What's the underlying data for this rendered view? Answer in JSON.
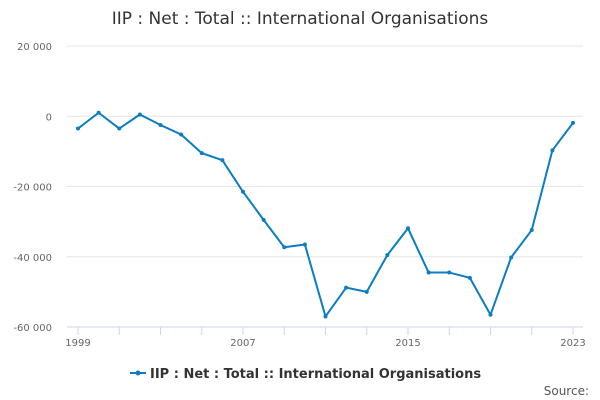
{
  "chart_data": {
    "type": "line",
    "title": "IIP : Net : Total :: International Organisations",
    "xlabel": "",
    "ylabel": "",
    "x": [
      1999,
      2000,
      2001,
      2002,
      2003,
      2004,
      2005,
      2006,
      2007,
      2008,
      2009,
      2010,
      2011,
      2012,
      2013,
      2014,
      2015,
      2016,
      2017,
      2018,
      2019,
      2020,
      2021,
      2022,
      2023
    ],
    "series": [
      {
        "name": "IIP : Net : Total :: International Organisations",
        "color": "#0b7dc0",
        "values": [
          -3500,
          1000,
          -3500,
          500,
          -2500,
          -5200,
          -10500,
          -12500,
          -21500,
          -29500,
          -37300,
          -36500,
          -57000,
          -48800,
          -50000,
          -39500,
          -31900,
          -44500,
          -44500,
          -46000,
          -56500,
          -40200,
          -32400,
          -9700,
          -1900
        ]
      }
    ],
    "xticks": [
      "1999",
      "2007",
      "2015",
      "2023"
    ],
    "yticks": [
      {
        "value": 20000,
        "label": "20 000"
      },
      {
        "value": 0,
        "label": "0"
      },
      {
        "value": -20000,
        "label": "-20 000"
      },
      {
        "value": -40000,
        "label": "-40 000"
      },
      {
        "value": -60000,
        "label": "-60 000"
      }
    ],
    "ylim": [
      -60000,
      20000
    ],
    "xlim": [
      1999,
      2023
    ],
    "grid": true,
    "legend_position": "bottom-center",
    "source_label": "Source:"
  }
}
